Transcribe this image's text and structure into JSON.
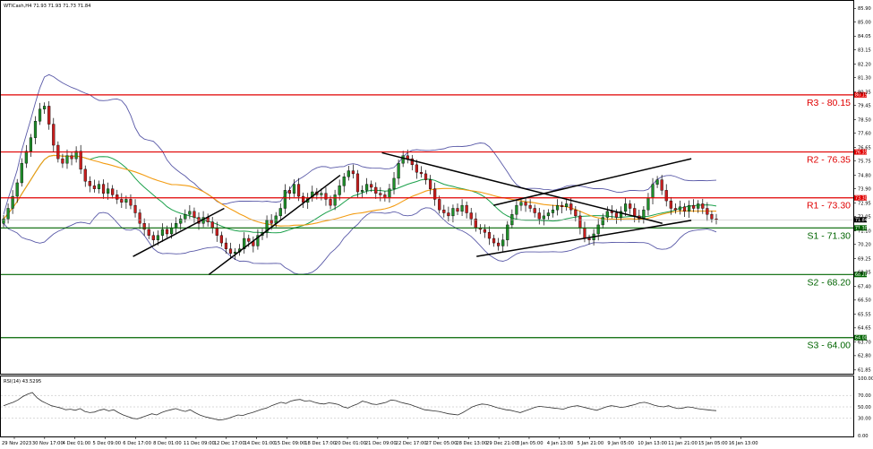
{
  "chart_data": {
    "type": "candlestick",
    "header": "WTICash,H4  71.93 71.93 71.73 71.84",
    "y_ticks": [
      "85.90",
      "85.00",
      "84.05",
      "83.15",
      "82.20",
      "81.30",
      "80.35",
      "79.45",
      "78.50",
      "77.60",
      "76.65",
      "75.75",
      "74.80",
      "73.90",
      "72.95",
      "72.05",
      "71.10",
      "70.20",
      "69.25",
      "68.35",
      "67.40",
      "66.50",
      "65.55",
      "64.65",
      "63.70",
      "62.80",
      "61.85"
    ],
    "ylim": [
      61.6,
      86.4
    ],
    "x_ticks": [
      "29 Nov 2023",
      "30 Nov 17:00",
      "4 Dec 01:00",
      "5 Dec 09:00",
      "6 Dec 17:00",
      "8 Dec 01:00",
      "11 Dec 09:00",
      "12 Dec 17:00",
      "14 Dec 01:00",
      "15 Dec 09:00",
      "18 Dec 17:00",
      "20 Dec 01:00",
      "21 Dec 09:00",
      "22 Dec 17:00",
      "27 Dec 05:00",
      "28 Dec 13:00",
      "29 Dec 21:00",
      "3 Jan 05:00",
      "4 Jan 13:00",
      "5 Jan 21:00",
      "9 Jan 05:00",
      "10 Jan 13:00",
      "11 Jan 21:00",
      "15 Jan 05:00",
      "16 Jan 13:00"
    ],
    "levels": [
      {
        "name": "R3",
        "value": 80.15,
        "label": "R3 - 80.15",
        "color": "#e00000",
        "box": "80.15"
      },
      {
        "name": "R2",
        "value": 76.35,
        "label": "R2 - 76.35",
        "color": "#e00000",
        "box": "76.35"
      },
      {
        "name": "R1",
        "value": 73.3,
        "label": "R1 - 73.30",
        "color": "#e00000",
        "box": "73.30"
      },
      {
        "name": "S1",
        "value": 71.3,
        "label": "S1 - 71.30",
        "color": "#006400",
        "box": "71.30"
      },
      {
        "name": "S2",
        "value": 68.2,
        "label": "S2 - 68.20",
        "color": "#006400",
        "box": "68.20"
      },
      {
        "name": "S3",
        "value": 64.0,
        "label": "S3 - 64.00",
        "color": "#006400",
        "box": "64.00"
      }
    ],
    "current_price": "71.84",
    "trendlines": [
      {
        "from": [
          0.155,
          69.4
        ],
        "to": [
          0.262,
          72.6
        ]
      },
      {
        "from": [
          0.244,
          68.2
        ],
        "to": [
          0.398,
          74.8
        ]
      },
      {
        "from": [
          0.447,
          76.3
        ],
        "to": [
          0.776,
          71.6
        ]
      },
      {
        "from": [
          0.558,
          69.4
        ],
        "to": [
          0.81,
          71.8
        ]
      },
      {
        "from": [
          0.578,
          72.8
        ],
        "to": [
          0.81,
          75.9
        ]
      }
    ],
    "closes": [
      71.9,
      72.6,
      73.4,
      74.3,
      75.6,
      76.4,
      77.3,
      78.4,
      79.2,
      79.4,
      78.2,
      76.8,
      75.9,
      75.6,
      76.1,
      75.9,
      76.4,
      75.2,
      74.4,
      74.1,
      73.9,
      74.2,
      73.6,
      73.9,
      73.5,
      73.2,
      73.0,
      73.2,
      72.8,
      72.3,
      71.6,
      71.2,
      70.8,
      70.5,
      70.8,
      71.2,
      70.9,
      71.3,
      71.6,
      71.9,
      72.2,
      72.4,
      72.0,
      71.6,
      72.0,
      71.7,
      71.3,
      70.8,
      70.3,
      69.9,
      69.6,
      69.7,
      69.9,
      70.6,
      70.4,
      70.1,
      70.8,
      71.0,
      71.8,
      71.6,
      72.1,
      72.6,
      73.8,
      73.6,
      74.2,
      73.4,
      73.0,
      73.3,
      73.7,
      73.5,
      73.6,
      73.2,
      72.8,
      73.5,
      74.1,
      74.7,
      75.1,
      74.9,
      73.7,
      73.8,
      74.2,
      74.0,
      73.6,
      73.5,
      73.3,
      73.9,
      74.6,
      75.6,
      76.1,
      75.9,
      75.5,
      75.0,
      74.9,
      74.5,
      73.9,
      73.2,
      72.5,
      72.3,
      72.1,
      72.6,
      72.4,
      72.8,
      72.3,
      71.9,
      71.3,
      71.2,
      71.0,
      70.6,
      70.3,
      70.1,
      70.5,
      71.5,
      72.2,
      72.8,
      73.0,
      72.8,
      72.6,
      72.3,
      71.9,
      72.1,
      72.3,
      72.5,
      72.8,
      72.7,
      72.9,
      72.5,
      72.1,
      71.3,
      70.6,
      70.5,
      70.9,
      71.5,
      72.0,
      72.4,
      72.3,
      72.0,
      72.4,
      72.9,
      72.6,
      72.1,
      71.9,
      72.5,
      73.3,
      74.2,
      74.5,
      73.8,
      73.1,
      72.6,
      72.5,
      72.7,
      72.4,
      72.8,
      72.6,
      72.9,
      72.6,
      72.2,
      71.9,
      71.84
    ],
    "rsi": {
      "label": "RSI(14) 43.5295",
      "ylim": [
        0,
        100
      ],
      "ticks": [
        "100.00",
        "70.00",
        "50.00",
        "30.00",
        "0.00"
      ],
      "values": [
        52,
        55,
        58,
        62,
        68,
        72,
        75,
        66,
        60,
        56,
        52,
        50,
        48,
        45,
        46,
        44,
        47,
        42,
        40,
        41,
        44,
        46,
        43,
        45,
        40,
        36,
        33,
        30,
        29,
        32,
        35,
        38,
        36,
        40,
        43,
        45,
        47,
        44,
        42,
        45,
        40,
        36,
        33,
        31,
        29,
        27,
        28,
        30,
        33,
        36,
        35,
        38,
        40,
        43,
        46,
        48,
        52,
        55,
        58,
        56,
        60,
        62,
        63,
        60,
        61,
        58,
        56,
        55,
        57,
        56,
        54,
        50,
        48,
        52,
        55,
        60,
        58,
        55,
        54,
        56,
        58,
        62,
        61,
        58,
        56,
        54,
        51,
        48,
        45,
        44,
        43,
        42,
        40,
        38,
        37,
        36,
        40,
        45,
        50,
        53,
        55,
        54,
        52,
        49,
        47,
        45,
        44,
        42,
        40,
        43,
        46,
        49,
        51,
        50,
        49,
        48,
        47,
        46,
        49,
        51,
        52,
        50,
        48,
        46,
        44,
        47,
        50,
        52,
        51,
        49,
        50,
        52,
        54,
        57,
        58,
        56,
        53,
        51,
        50,
        52,
        49,
        47,
        48,
        50,
        49,
        47,
        46,
        45,
        44,
        43.5
      ]
    }
  }
}
